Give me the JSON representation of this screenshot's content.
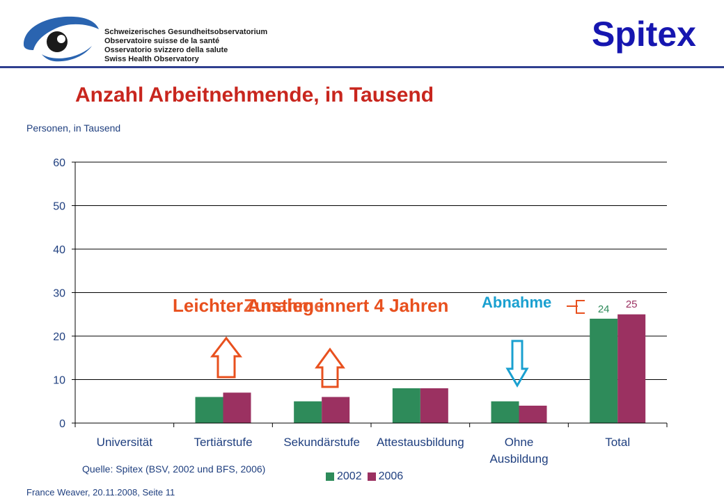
{
  "header": {
    "org_lines": [
      "Schweizerisches Gesundheitsobservatorium",
      "Observatoire suisse de la santé",
      "Osservatorio svizzero della salute",
      "Swiss Health Observatory"
    ],
    "page_title": "Spitex"
  },
  "chart_data": {
    "type": "bar",
    "title": "Anzahl Arbeitnehmende, in Tausend",
    "ylabel": "Personen, in Tausend",
    "xlabel": "",
    "categories": [
      "Universität",
      "Tertiärstufe",
      "Sekundärstufe",
      "Attestausbildung",
      "Ohne Ausbildung",
      "Total"
    ],
    "series": [
      {
        "name": "2002",
        "values": [
          0,
          6,
          5,
          8,
          5,
          24
        ],
        "color": "#2e8b5a"
      },
      {
        "name": "2006",
        "values": [
          0,
          7,
          6,
          8,
          4,
          25
        ],
        "color": "#9b3161"
      }
    ],
    "ylim": [
      0,
      60
    ],
    "yticks": [
      0,
      10,
      20,
      30,
      40,
      50,
      60
    ],
    "data_labels": {
      "total_2002": "24",
      "total_2006": "25"
    },
    "grid": true,
    "legend_position": "bottom"
  },
  "annotations": {
    "main": "Leichter Anstieg innert 4 Jahren",
    "overlap": "Zunahme",
    "decrease": "Abnahme"
  },
  "source": "Quelle: Spitex (BSV, 2002 und BFS, 2006)",
  "footer": "France Weaver, 20.11.2008, Seite 11",
  "colors": {
    "title_blue": "#1616b0",
    "title_red": "#c8261e",
    "arrow_orange": "#e8501e",
    "arrow_blue": "#1aa0d0",
    "text_blue": "#1f3f7f"
  }
}
